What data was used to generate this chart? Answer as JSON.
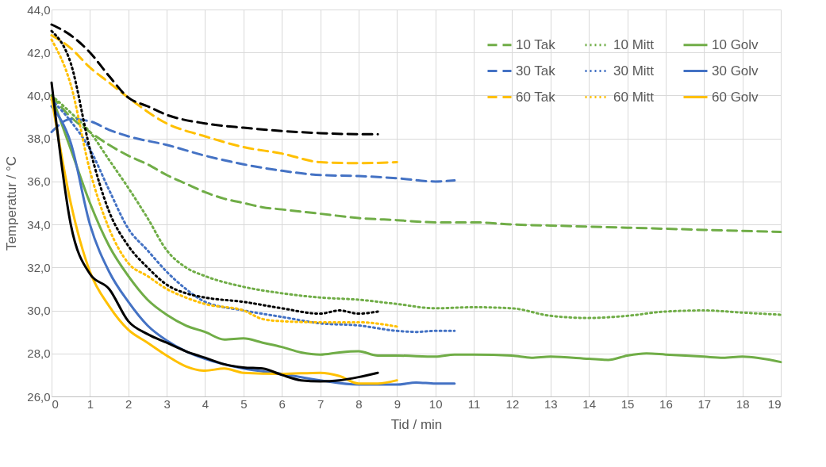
{
  "chart_data": {
    "type": "line",
    "xlabel": "Tid / min",
    "ylabel": "Temperatur / °C",
    "xlim": [
      0,
      19
    ],
    "xticks": [
      0,
      1,
      2,
      3,
      4,
      5,
      6,
      7,
      8,
      9,
      10,
      11,
      12,
      13,
      14,
      15,
      16,
      17,
      18,
      19
    ],
    "ylim": [
      26,
      44
    ],
    "yticks": [
      {
        "value": 26,
        "label": "26,0"
      },
      {
        "value": 28,
        "label": "28,0"
      },
      {
        "value": 30,
        "label": "30,0"
      },
      {
        "value": 32,
        "label": "32,0"
      },
      {
        "value": 34,
        "label": "34,0"
      },
      {
        "value": 36,
        "label": "36,0"
      },
      {
        "value": 38,
        "label": "38,0"
      },
      {
        "value": 40,
        "label": "40,0"
      },
      {
        "value": 42,
        "label": "42,0"
      },
      {
        "value": 44,
        "label": "44,0"
      }
    ],
    "grid": true,
    "legend": "top right",
    "marker": "none",
    "series": [
      {
        "name": "10 Tak",
        "color": "#70ad47",
        "line_style": "dashed",
        "x": [
          0,
          0.5,
          1,
          1.5,
          2,
          2.5,
          3,
          3.5,
          4,
          4.5,
          5,
          5.5,
          6,
          7,
          8,
          9,
          10,
          11,
          12,
          13,
          14,
          15,
          16,
          17,
          18,
          19
        ],
        "values": [
          40.0,
          39.0,
          38.3,
          37.7,
          37.2,
          36.8,
          36.3,
          35.9,
          35.5,
          35.2,
          35.0,
          34.8,
          34.7,
          34.5,
          34.3,
          34.2,
          34.1,
          34.1,
          34.0,
          33.95,
          33.9,
          33.85,
          33.8,
          33.75,
          33.7,
          33.65
        ]
      },
      {
        "name": "10 Mitt",
        "color": "#70ad47",
        "line_style": "dotted",
        "x": [
          0,
          0.5,
          1,
          1.5,
          2,
          2.5,
          3,
          3.5,
          4,
          5,
          6,
          7,
          8,
          9,
          10,
          11,
          12,
          13,
          14,
          15,
          16,
          17,
          18,
          19
        ],
        "values": [
          40.0,
          39.2,
          38.3,
          37.0,
          35.7,
          34.3,
          32.8,
          32.0,
          31.6,
          31.1,
          30.8,
          30.6,
          30.5,
          30.3,
          30.1,
          30.15,
          30.1,
          29.75,
          29.65,
          29.75,
          29.95,
          30.0,
          29.9,
          29.8
        ]
      },
      {
        "name": "10 Golv",
        "color": "#70ad47",
        "line_style": "solid",
        "x": [
          0,
          0.5,
          1,
          1.5,
          2,
          2.5,
          3,
          3.5,
          4,
          4.5,
          5,
          5.5,
          6,
          6.5,
          7,
          7.5,
          8,
          8.5,
          9,
          10,
          10.5,
          11,
          12,
          12.5,
          13,
          14,
          14.5,
          15,
          15.5,
          16,
          17,
          17.5,
          18,
          19
        ],
        "values": [
          40.0,
          37.5,
          35.0,
          33.0,
          31.6,
          30.5,
          29.8,
          29.3,
          29.0,
          28.65,
          28.7,
          28.5,
          28.3,
          28.05,
          27.95,
          28.05,
          28.1,
          27.9,
          27.9,
          27.85,
          27.95,
          27.95,
          27.9,
          27.8,
          27.85,
          27.75,
          27.7,
          27.9,
          28.0,
          27.95,
          27.85,
          27.8,
          27.85,
          27.6
        ]
      },
      {
        "name": "30 Tak",
        "color": "#4472c4",
        "line_style": "dashed",
        "x": [
          0,
          0.5,
          1,
          1.5,
          2,
          3,
          4,
          5,
          6,
          7,
          8,
          9,
          10,
          10.5
        ],
        "values": [
          38.3,
          38.9,
          38.8,
          38.4,
          38.1,
          37.7,
          37.2,
          36.8,
          36.5,
          36.3,
          36.25,
          36.15,
          36.0,
          36.05
        ]
      },
      {
        "name": "30 Mitt",
        "color": "#4472c4",
        "line_style": "dotted",
        "x": [
          0,
          0.5,
          1,
          1.5,
          2,
          2.5,
          3,
          3.5,
          4,
          5,
          6,
          7,
          8,
          9,
          9.5,
          10,
          10.5
        ],
        "values": [
          39.8,
          38.8,
          37.5,
          35.6,
          33.8,
          32.8,
          31.8,
          31.0,
          30.4,
          30.0,
          29.7,
          29.4,
          29.3,
          29.05,
          29.0,
          29.05,
          29.05
        ]
      },
      {
        "name": "30 Golv",
        "color": "#4472c4",
        "line_style": "solid",
        "x": [
          0,
          0.5,
          1,
          1.5,
          2,
          2.5,
          3,
          3.5,
          4,
          5,
          6,
          7,
          8,
          9,
          9.5,
          10,
          10.5
        ],
        "values": [
          39.5,
          37.8,
          34.0,
          31.8,
          30.4,
          29.3,
          28.6,
          28.1,
          27.75,
          27.3,
          27.05,
          26.75,
          26.55,
          26.55,
          26.65,
          26.6,
          26.6
        ]
      },
      {
        "name": "60 Tak",
        "color": "#ffc000",
        "line_style": "dashed",
        "x": [
          0,
          0.5,
          1,
          1.5,
          2,
          3,
          4,
          5,
          6,
          7,
          8,
          9
        ],
        "values": [
          42.8,
          42.2,
          41.3,
          40.6,
          39.9,
          38.7,
          38.1,
          37.6,
          37.3,
          36.9,
          36.85,
          36.9
        ]
      },
      {
        "name": "60 Mitt",
        "color": "#ffc000",
        "line_style": "dotted",
        "x": [
          0,
          0.5,
          1,
          1.5,
          2,
          2.5,
          3,
          3.5,
          4,
          5,
          5.5,
          6,
          7,
          8,
          9
        ],
        "values": [
          42.6,
          40.5,
          36.5,
          33.8,
          32.2,
          31.6,
          31.0,
          30.6,
          30.3,
          30.0,
          29.6,
          29.5,
          29.45,
          29.45,
          29.25
        ]
      },
      {
        "name": "60 Golv",
        "color": "#ffc000",
        "line_style": "solid",
        "x": [
          0,
          0.5,
          1,
          1.5,
          2,
          2.5,
          3,
          3.5,
          4,
          4.5,
          5,
          6,
          7,
          7.5,
          8,
          8.5,
          9
        ],
        "values": [
          39.9,
          35.0,
          31.8,
          30.2,
          29.1,
          28.5,
          27.9,
          27.4,
          27.2,
          27.3,
          27.1,
          27.05,
          27.1,
          26.95,
          26.6,
          26.6,
          26.75
        ]
      },
      {
        "color": "#000000",
        "line_style": "dashed",
        "x": [
          0,
          0.5,
          1,
          1.5,
          2,
          2.5,
          3,
          4,
          5,
          6,
          7,
          8,
          8.5
        ],
        "values": [
          43.3,
          42.8,
          42.0,
          40.9,
          39.9,
          39.5,
          39.1,
          38.7,
          38.5,
          38.35,
          38.25,
          38.2,
          38.2
        ]
      },
      {
        "color": "#000000",
        "line_style": "dotted",
        "x": [
          0,
          0.5,
          1,
          1.5,
          2,
          2.5,
          3,
          3.5,
          4,
          5,
          6,
          7,
          7.5,
          8,
          8.5
        ],
        "values": [
          43.0,
          41.5,
          37.5,
          34.6,
          33.0,
          32.0,
          31.2,
          30.8,
          30.6,
          30.4,
          30.1,
          29.85,
          30.0,
          29.85,
          29.95
        ]
      },
      {
        "color": "#000000",
        "line_style": "solid",
        "x": [
          0,
          0.5,
          1,
          1.5,
          2,
          2.5,
          3,
          3.5,
          4,
          4.5,
          5,
          5.5,
          6,
          6.5,
          7,
          7.5,
          8,
          8.5
        ],
        "values": [
          40.6,
          34.0,
          31.7,
          31.0,
          29.5,
          28.9,
          28.5,
          28.1,
          27.8,
          27.5,
          27.35,
          27.3,
          27.0,
          26.75,
          26.7,
          26.75,
          26.9,
          27.1
        ]
      }
    ]
  }
}
